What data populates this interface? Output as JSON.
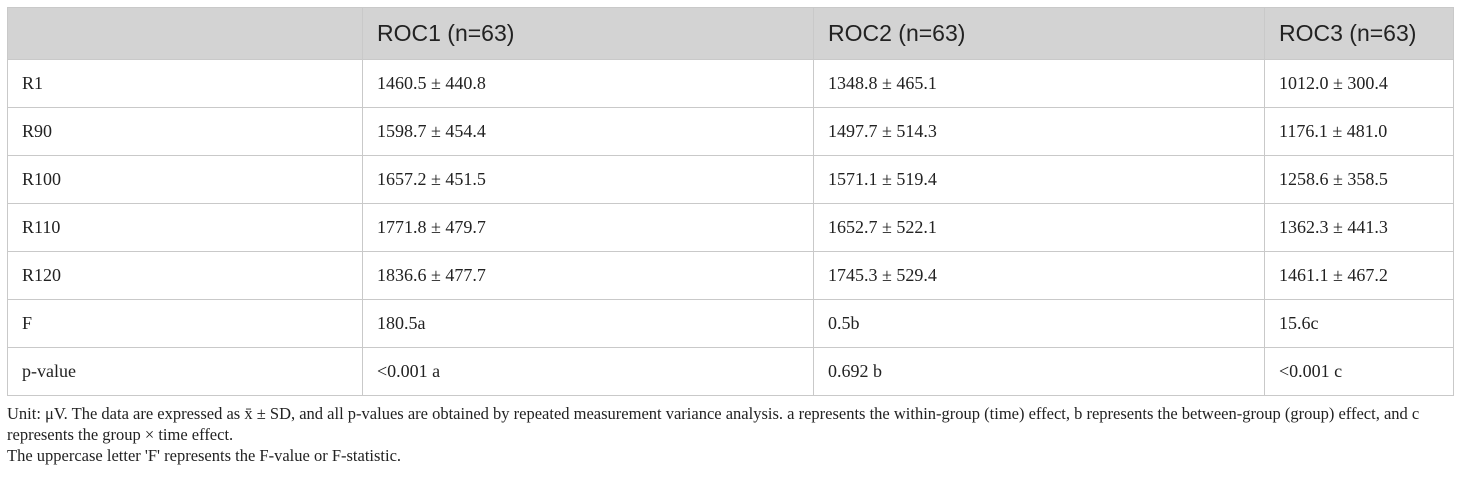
{
  "table": {
    "headers": [
      "",
      "ROC1 (n=63)",
      "ROC2 (n=63)",
      "ROC3 (n=63)"
    ],
    "rows": [
      [
        "R1",
        "1460.5 ± 440.8",
        "1348.8 ± 465.1",
        "1012.0 ± 300.4"
      ],
      [
        "R90",
        "1598.7 ± 454.4",
        "1497.7 ± 514.3",
        "1176.1 ± 481.0"
      ],
      [
        "R100",
        "1657.2 ± 451.5",
        "1571.1 ± 519.4",
        "1258.6 ± 358.5"
      ],
      [
        "R110",
        "1771.8 ± 479.7",
        "1652.7 ± 522.1",
        "1362.3 ± 441.3"
      ],
      [
        "R120",
        "1836.6 ± 477.7",
        "1745.3 ± 529.4",
        "1461.1 ± 467.2"
      ],
      [
        "F",
        "180.5a",
        "0.5b",
        "15.6c"
      ],
      [
        "p-value",
        "<0.001 a",
        "0.692 b",
        "<0.001 c"
      ]
    ]
  },
  "notes": {
    "line1": "Unit: μV. The data are expressed as x̄ ± SD, and all p-values are obtained by repeated measurement variance analysis. a represents the within-group (time) effect, b represents the between-group (group) effect, and c represents the group × time effect.",
    "line2": "The uppercase letter 'F' represents the F-value or F-statistic."
  }
}
